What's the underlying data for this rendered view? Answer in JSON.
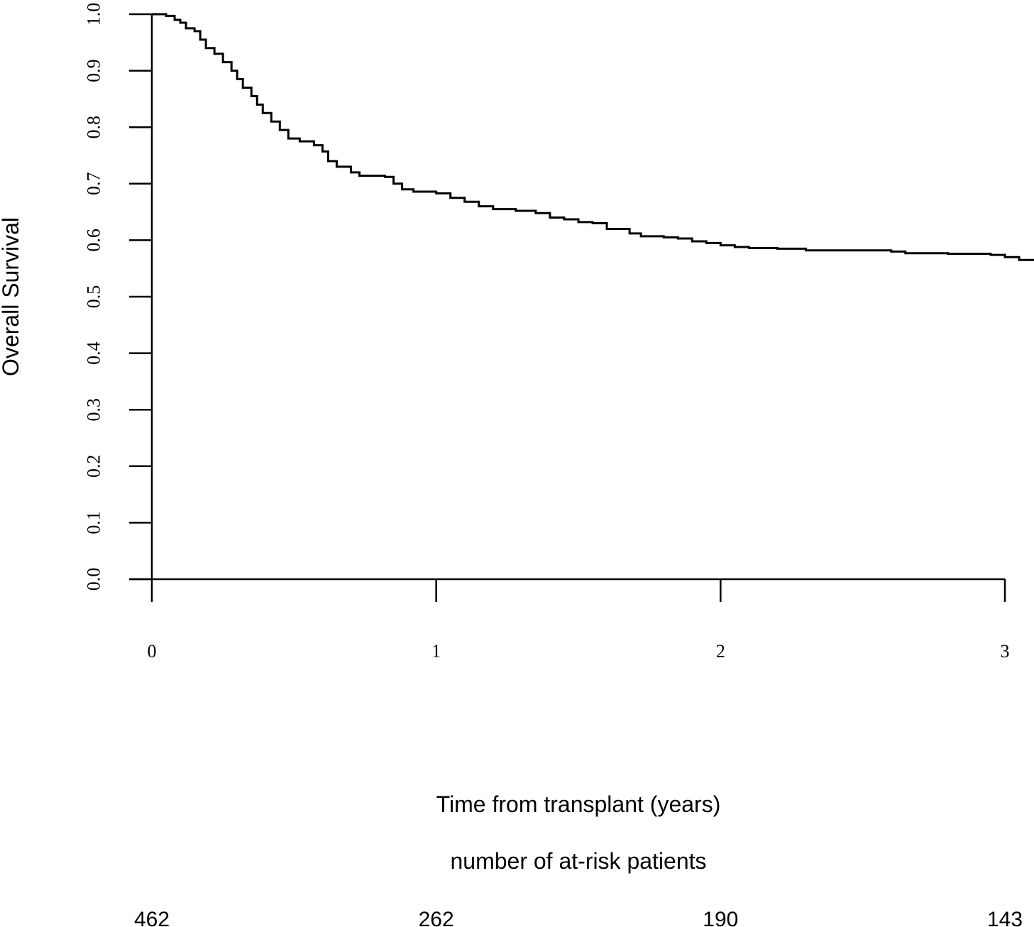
{
  "chart_data": {
    "type": "line",
    "step": true,
    "xlabel": "Time from transplant (years)",
    "ylabel": "Overall Survival",
    "xlim": [
      0,
      3.1
    ],
    "ylim": [
      0,
      1
    ],
    "x_ticks": [
      0,
      1,
      2,
      3
    ],
    "y_ticks": [
      "0.0",
      "0.1",
      "0.2",
      "0.3",
      "0.4",
      "0.5",
      "0.6",
      "0.7",
      "0.8",
      "0.9",
      "1.0"
    ],
    "grid": false,
    "series": [
      {
        "points": [
          [
            0,
            1.0
          ],
          [
            0.05,
            0.997
          ],
          [
            0.08,
            0.99
          ],
          [
            0.1,
            0.985
          ],
          [
            0.12,
            0.975
          ],
          [
            0.15,
            0.97
          ],
          [
            0.17,
            0.955
          ],
          [
            0.19,
            0.94
          ],
          [
            0.22,
            0.93
          ],
          [
            0.25,
            0.915
          ],
          [
            0.28,
            0.9
          ],
          [
            0.3,
            0.885
          ],
          [
            0.32,
            0.87
          ],
          [
            0.35,
            0.855
          ],
          [
            0.37,
            0.84
          ],
          [
            0.39,
            0.825
          ],
          [
            0.42,
            0.81
          ],
          [
            0.45,
            0.795
          ],
          [
            0.48,
            0.78
          ],
          [
            0.52,
            0.775
          ],
          [
            0.57,
            0.768
          ],
          [
            0.6,
            0.757
          ],
          [
            0.62,
            0.74
          ],
          [
            0.65,
            0.73
          ],
          [
            0.7,
            0.72
          ],
          [
            0.73,
            0.714
          ],
          [
            0.82,
            0.712
          ],
          [
            0.85,
            0.7
          ],
          [
            0.88,
            0.69
          ],
          [
            0.92,
            0.686
          ],
          [
            1.0,
            0.683
          ],
          [
            1.05,
            0.675
          ],
          [
            1.1,
            0.668
          ],
          [
            1.15,
            0.66
          ],
          [
            1.2,
            0.655
          ],
          [
            1.28,
            0.652
          ],
          [
            1.35,
            0.648
          ],
          [
            1.4,
            0.64
          ],
          [
            1.45,
            0.637
          ],
          [
            1.5,
            0.632
          ],
          [
            1.55,
            0.63
          ],
          [
            1.6,
            0.62
          ],
          [
            1.68,
            0.612
          ],
          [
            1.72,
            0.607
          ],
          [
            1.8,
            0.605
          ],
          [
            1.85,
            0.603
          ],
          [
            1.9,
            0.598
          ],
          [
            1.95,
            0.595
          ],
          [
            2.0,
            0.591
          ],
          [
            2.05,
            0.588
          ],
          [
            2.1,
            0.586
          ],
          [
            2.2,
            0.585
          ],
          [
            2.3,
            0.582
          ],
          [
            2.5,
            0.582
          ],
          [
            2.6,
            0.58
          ],
          [
            2.65,
            0.577
          ],
          [
            2.8,
            0.576
          ],
          [
            2.95,
            0.574
          ],
          [
            3.0,
            0.57
          ],
          [
            3.05,
            0.565
          ],
          [
            3.1,
            0.565
          ]
        ]
      }
    ]
  },
  "at_risk": {
    "title": "number of at-risk patients",
    "times": [
      0,
      1,
      2,
      3
    ],
    "counts": [
      "462",
      "262",
      "190",
      "143"
    ]
  }
}
